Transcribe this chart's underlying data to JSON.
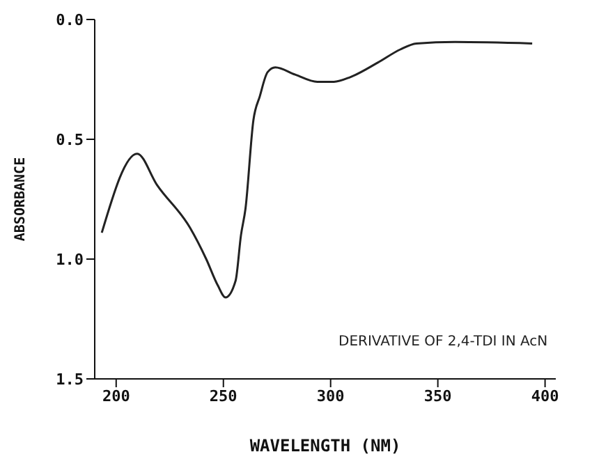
{
  "chart_data": {
    "type": "line",
    "xlabel": "WAVELENGTH (NM)",
    "ylabel": "ABSORBANCE",
    "annotations": [
      "DERIVATIVE OF 2,4-TDI IN AcN"
    ],
    "x": [
      193.3,
      209.8,
      219,
      234.5,
      242,
      247.4,
      251,
      255.7,
      258.2,
      260.3,
      264,
      267,
      270.6,
      274.2,
      283.5,
      293.8,
      301.5,
      309.3,
      322,
      332.5,
      340,
      358,
      394
    ],
    "series": [
      {
        "color": "#222222",
        "values": [
          0.89,
          0.56,
          0.69,
          0.87,
          1.0,
          1.11,
          1.16,
          1.09,
          0.9,
          0.79,
          0.42,
          0.32,
          0.22,
          0.2,
          0.23,
          0.26,
          0.26,
          0.24,
          0.18,
          0.125,
          0.1,
          0.094,
          0.1
        ]
      }
    ],
    "xlim": [
      190,
      405
    ],
    "xticks": [
      200,
      250,
      300,
      350,
      400
    ],
    "ylim": [
      1.5,
      0
    ],
    "yticks": [
      {
        "value": 0,
        "label": "0.0"
      },
      0.5,
      {
        "value": 1,
        "label": "1.0"
      },
      1.5
    ],
    "grid": false,
    "legend": false,
    "marker": "none",
    "line_style": "solid"
  }
}
